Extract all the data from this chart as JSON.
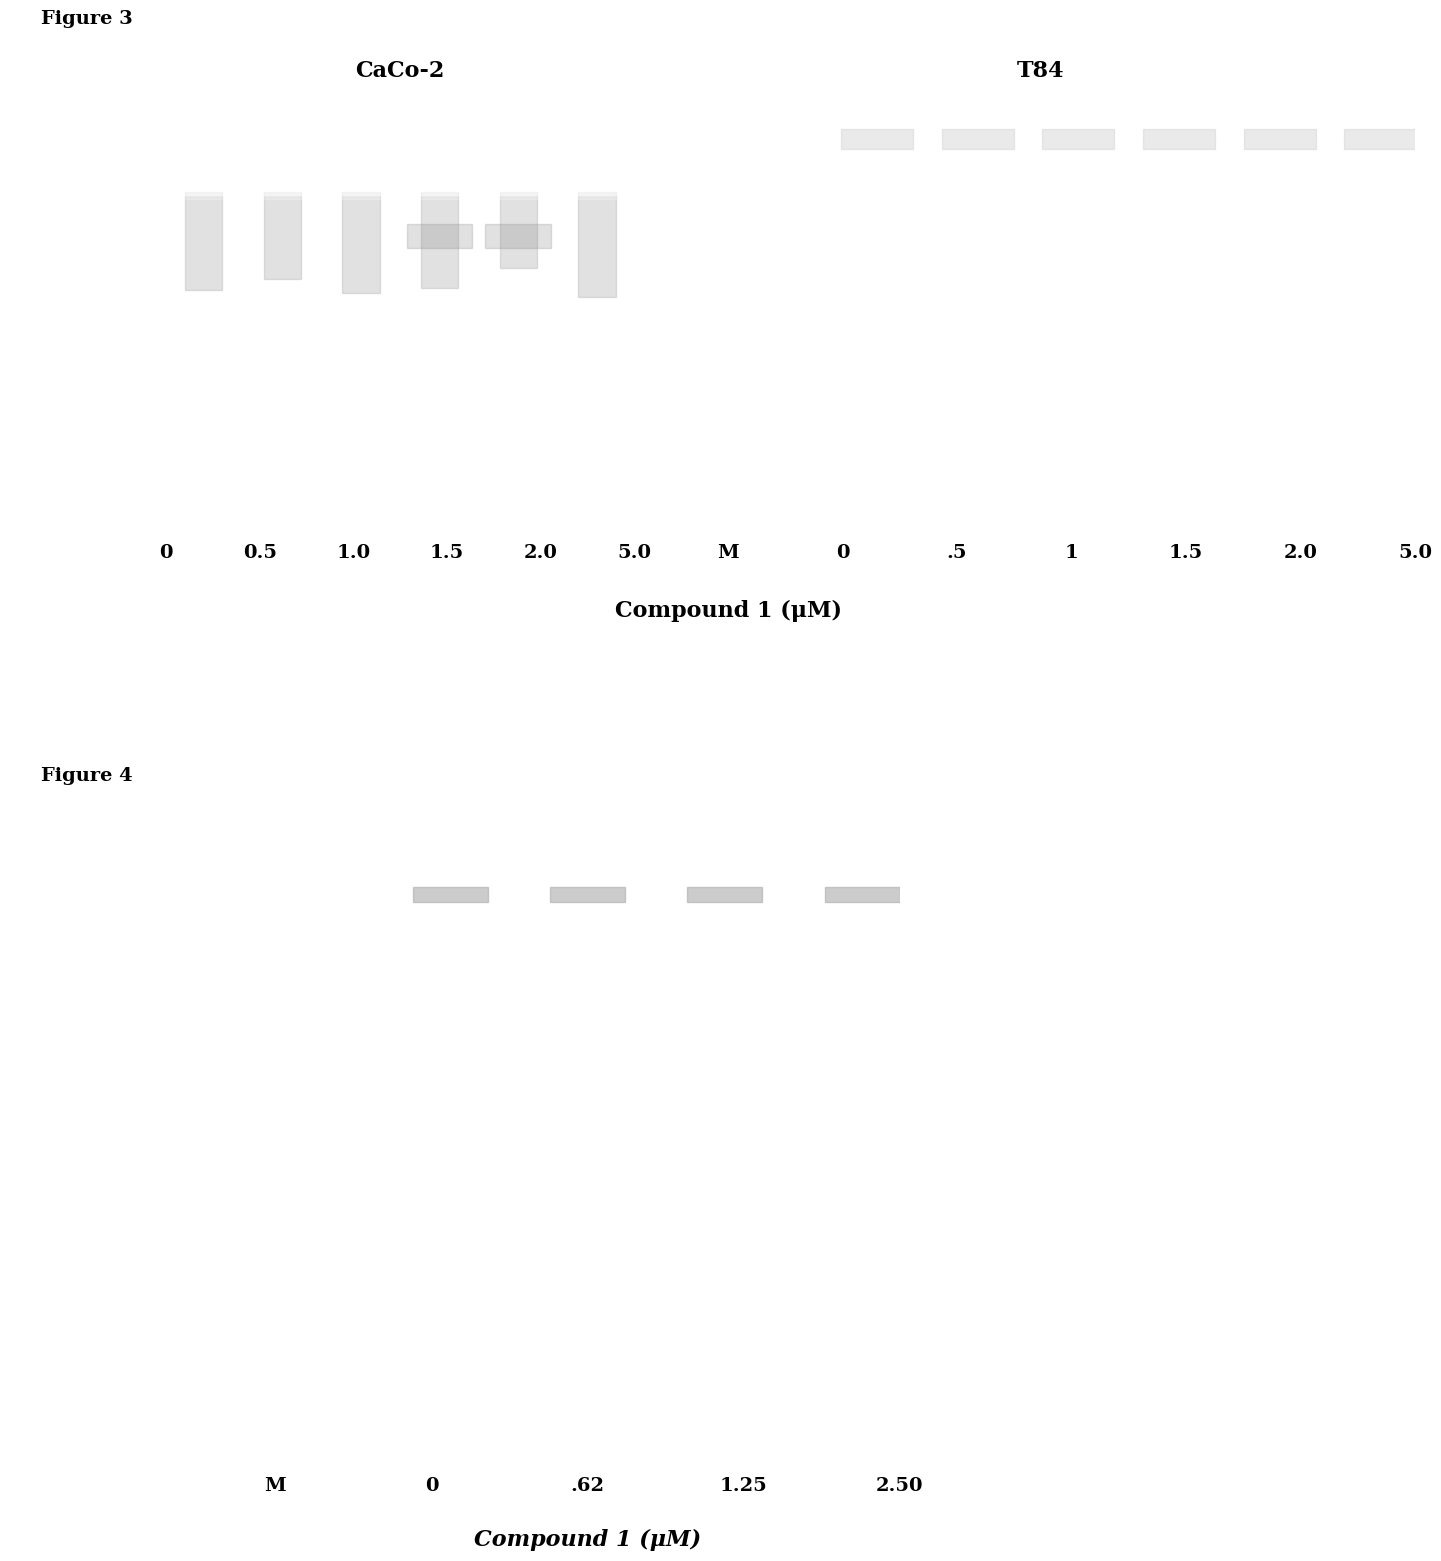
{
  "fig3_title": "Figure 3",
  "fig4_title": "Figure 4",
  "fig3_label_left": "CaCo-2",
  "fig3_label_right": "T84",
  "fig3_xlabel_left": [
    "0",
    "0.5",
    "1.0",
    "1.5",
    "2.0",
    "5.0"
  ],
  "fig3_xlabel_right": [
    "M",
    "0",
    ".5",
    "1",
    "1.5",
    "2.0",
    "5.0"
  ],
  "fig3_compound_label": "Compound 1 (μM)",
  "fig4_xlabel": [
    "M",
    "0",
    ".62",
    "1.25",
    "2.50"
  ],
  "fig4_compound_label": "Compound 1 (μM)",
  "background_color": "#ffffff",
  "gel_bg": "#000000",
  "band_color": "#ffffff",
  "figure_title_fontsize": 14,
  "label_fontsize": 16,
  "tick_fontsize": 14,
  "compound_fontsize": 16
}
